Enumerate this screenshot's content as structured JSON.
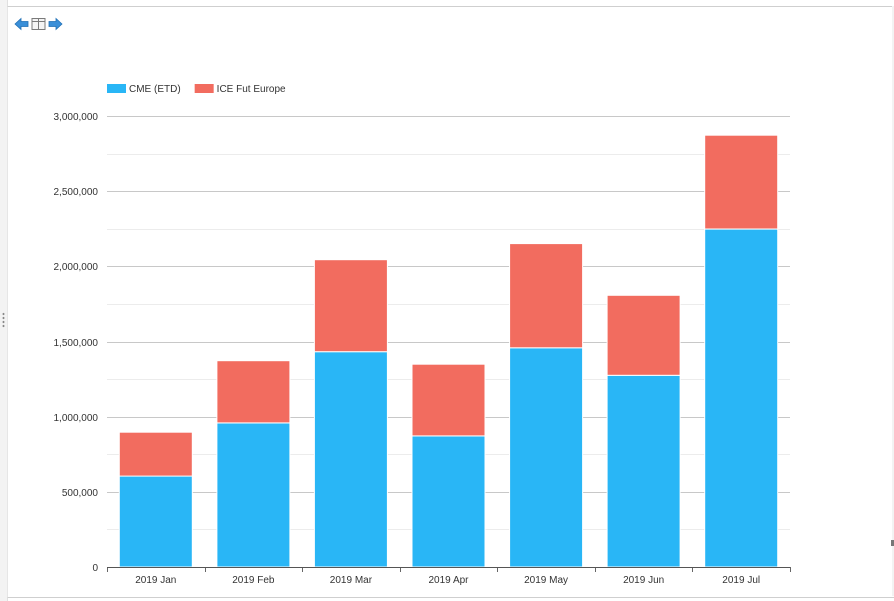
{
  "toolbar": {
    "back_icon": "arrow-left-icon",
    "view_icon": "table-view-icon",
    "forward_icon": "arrow-right-icon",
    "accent": "#3a8fd8"
  },
  "chart_data": {
    "type": "bar",
    "stacked": true,
    "categories": [
      "2019 Jan",
      "2019 Feb",
      "2019 Mar",
      "2019 Apr",
      "2019 May",
      "2019 Jun",
      "2019 Jul"
    ],
    "series": [
      {
        "name": "CME (ETD)",
        "color": "#29b6f6",
        "values": [
          605000,
          958000,
          1432000,
          872000,
          1458000,
          1275000,
          2248000
        ]
      },
      {
        "name": "ICE Fut Europe",
        "color": "#f26c5f",
        "values": [
          292000,
          414000,
          612000,
          477000,
          693000,
          532000,
          624000
        ]
      }
    ],
    "ylim": [
      0,
      3000000
    ],
    "yticks": [
      0,
      500000,
      1000000,
      1500000,
      2000000,
      2500000,
      3000000
    ],
    "ytick_labels": [
      "0",
      "500,000",
      "1,000,000",
      "1,500,000",
      "2,000,000",
      "2,500,000",
      "3,000,000"
    ],
    "grid": true,
    "legend": "top-left",
    "title": "",
    "xlabel": "",
    "ylabel": ""
  }
}
